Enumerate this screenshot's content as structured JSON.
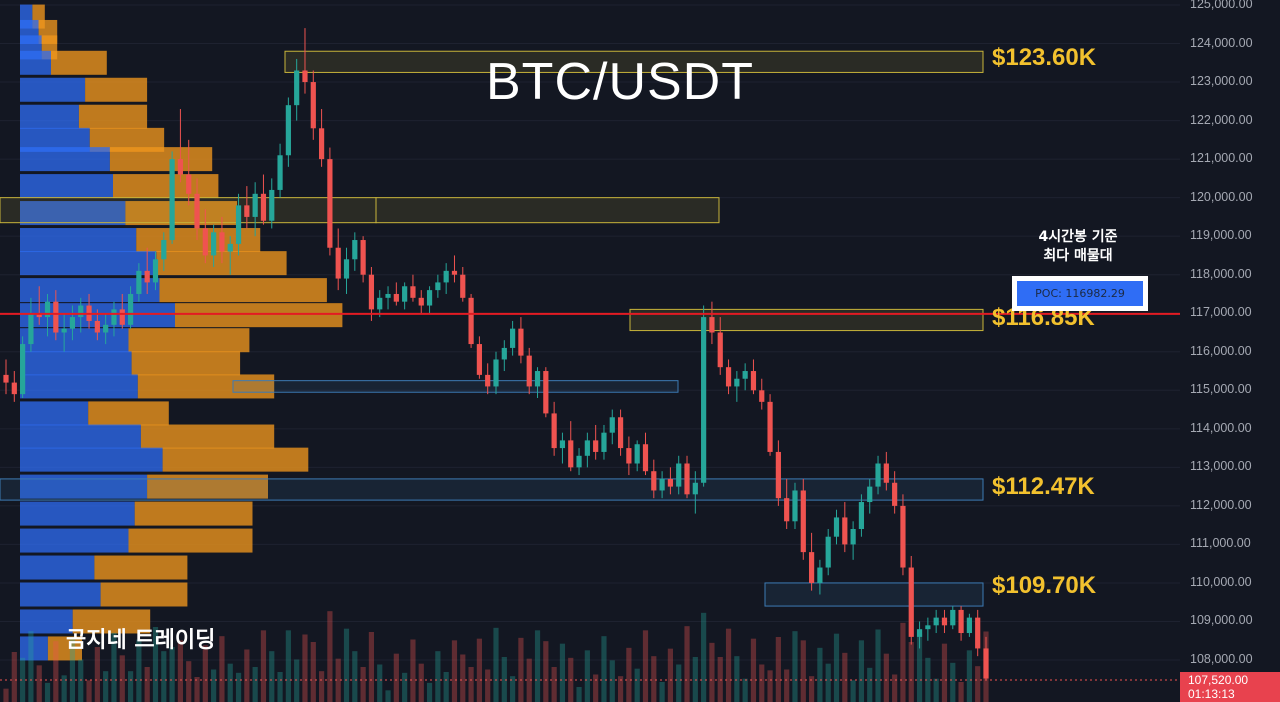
{
  "title": "BTC/USDT",
  "brand": "곰지네 트레이딩",
  "poc": {
    "note_line1": "4시간봉 기준",
    "note_line2": "최다 매물대",
    "label": "POC: 116982.29"
  },
  "levels": [
    {
      "label": "$123.60K",
      "price": 123600
    },
    {
      "label": "$116.85K",
      "price": 116850
    },
    {
      "label": "$112.47K",
      "price": 112470
    },
    {
      "label": "$109.70K",
      "price": 109700
    }
  ],
  "current": {
    "price": "107,520.00",
    "countdown": "01:13:13"
  },
  "y_axis": {
    "min": 107000,
    "max": 125000,
    "ticks": [
      "125,000.00",
      "124,000.00",
      "123,000.00",
      "122,000.00",
      "121,000.00",
      "120,000.00",
      "119,000.00",
      "118,000.00",
      "117,000.00",
      "116,000.00",
      "115,000.00",
      "114,000.00",
      "113,000.00",
      "112,000.00",
      "111,000.00",
      "110,000.00",
      "109,000.00",
      "108,000.00"
    ],
    "tick_values": [
      125000,
      124000,
      123000,
      122000,
      121000,
      120000,
      119000,
      118000,
      117000,
      116000,
      115000,
      114000,
      113000,
      112000,
      111000,
      110000,
      109000,
      108000
    ]
  },
  "colors": {
    "background": "#131722",
    "up": "#26a69a",
    "down": "#ef5350",
    "profile_buy": "#2f6df5",
    "profile_sell": "#f0961e",
    "poc_line": "#e31b23",
    "level_text": "#f2c12e",
    "zone_yellow": "#c8b43a",
    "zone_blue": "#3d7bb5"
  },
  "chart_data": {
    "type": "candlestick",
    "title": "BTC/USDT",
    "ylim": [
      107000,
      125000
    ],
    "candles": [
      [
        115400,
        115800,
        114900,
        115200
      ],
      [
        115200,
        115500,
        114700,
        114900
      ],
      [
        114900,
        116400,
        114800,
        116200
      ],
      [
        116200,
        117400,
        116000,
        117000
      ],
      [
        117000,
        117700,
        116700,
        116900
      ],
      [
        116900,
        117500,
        116400,
        117300
      ],
      [
        117300,
        117600,
        116300,
        116500
      ],
      [
        116500,
        117000,
        116000,
        116600
      ],
      [
        116600,
        117200,
        116300,
        116900
      ],
      [
        116900,
        117400,
        116500,
        117200
      ],
      [
        117200,
        117500,
        116600,
        116800
      ],
      [
        116800,
        117100,
        116300,
        116500
      ],
      [
        116500,
        117000,
        116200,
        116700
      ],
      [
        116700,
        117300,
        116400,
        117100
      ],
      [
        117100,
        117500,
        116600,
        116700
      ],
      [
        116700,
        117700,
        116600,
        117500
      ],
      [
        117500,
        118300,
        117300,
        118100
      ],
      [
        118100,
        118700,
        117500,
        117800
      ],
      [
        117800,
        118600,
        117600,
        118400
      ],
      [
        118400,
        119100,
        118100,
        118900
      ],
      [
        118900,
        121200,
        118800,
        121000
      ],
      [
        121000,
        122300,
        120400,
        120600
      ],
      [
        120600,
        121500,
        119800,
        120100
      ],
      [
        120100,
        120500,
        118900,
        119200
      ],
      [
        119200,
        119700,
        118300,
        118500
      ],
      [
        118500,
        119300,
        118200,
        119100
      ],
      [
        119100,
        119500,
        118300,
        118600
      ],
      [
        118600,
        119000,
        118000,
        118800
      ],
      [
        118800,
        120100,
        118500,
        119800
      ],
      [
        119800,
        120300,
        119200,
        119500
      ],
      [
        119500,
        120400,
        119000,
        120100
      ],
      [
        120100,
        120600,
        119300,
        119400
      ],
      [
        119400,
        120500,
        119200,
        120200
      ],
      [
        120200,
        121400,
        120000,
        121100
      ],
      [
        121100,
        122600,
        120800,
        122400
      ],
      [
        122400,
        123600,
        122000,
        123300
      ],
      [
        123300,
        124400,
        122700,
        123000
      ],
      [
        123000,
        123300,
        121500,
        121800
      ],
      [
        121800,
        122300,
        120800,
        121000
      ],
      [
        121000,
        121300,
        118500,
        118700
      ],
      [
        118700,
        119200,
        117600,
        117900
      ],
      [
        117900,
        118700,
        117500,
        118400
      ],
      [
        118400,
        119100,
        118100,
        118900
      ],
      [
        118900,
        119000,
        117800,
        118000
      ],
      [
        118000,
        118200,
        116800,
        117100
      ],
      [
        117100,
        117600,
        116900,
        117400
      ],
      [
        117400,
        117700,
        117100,
        117500
      ],
      [
        117500,
        117800,
        117200,
        117300
      ],
      [
        117300,
        117800,
        117100,
        117700
      ],
      [
        117700,
        118000,
        117300,
        117400
      ],
      [
        117400,
        117600,
        117000,
        117200
      ],
      [
        117200,
        117700,
        117000,
        117600
      ],
      [
        117600,
        118000,
        117400,
        117800
      ],
      [
        117800,
        118300,
        117500,
        118100
      ],
      [
        118100,
        118500,
        117800,
        118000
      ],
      [
        118000,
        118200,
        117300,
        117400
      ],
      [
        117400,
        117500,
        116100,
        116200
      ],
      [
        116200,
        116400,
        115300,
        115400
      ],
      [
        115400,
        115700,
        114900,
        115100
      ],
      [
        115100,
        116000,
        114900,
        115800
      ],
      [
        115800,
        116300,
        115500,
        116100
      ],
      [
        116100,
        116800,
        115900,
        116600
      ],
      [
        116600,
        116900,
        115700,
        115900
      ],
      [
        115900,
        116100,
        114900,
        115100
      ],
      [
        115100,
        115600,
        114800,
        115500
      ],
      [
        115500,
        115600,
        114300,
        114400
      ],
      [
        114400,
        114700,
        113300,
        113500
      ],
      [
        113500,
        113900,
        113100,
        113700
      ],
      [
        113700,
        114200,
        112900,
        113000
      ],
      [
        113000,
        113500,
        112800,
        113300
      ],
      [
        113300,
        113900,
        113000,
        113700
      ],
      [
        113700,
        114100,
        113200,
        113400
      ],
      [
        113400,
        114100,
        113200,
        113900
      ],
      [
        113900,
        114500,
        113600,
        114300
      ],
      [
        114300,
        114500,
        113300,
        113500
      ],
      [
        113500,
        113800,
        112800,
        113100
      ],
      [
        113100,
        113700,
        112900,
        113600
      ],
      [
        113600,
        113900,
        112800,
        112900
      ],
      [
        112900,
        113200,
        112200,
        112400
      ],
      [
        112400,
        112900,
        112200,
        112700
      ],
      [
        112700,
        113000,
        112300,
        112500
      ],
      [
        112500,
        113300,
        112300,
        113100
      ],
      [
        113100,
        113300,
        112200,
        112300
      ],
      [
        112300,
        112900,
        111800,
        112600
      ],
      [
        112600,
        117200,
        112500,
        116900
      ],
      [
        116900,
        117300,
        116200,
        116500
      ],
      [
        116500,
        116900,
        115400,
        115600
      ],
      [
        115600,
        115800,
        114900,
        115100
      ],
      [
        115100,
        115500,
        114700,
        115300
      ],
      [
        115300,
        115700,
        115000,
        115500
      ],
      [
        115500,
        115800,
        114900,
        115000
      ],
      [
        115000,
        115300,
        114500,
        114700
      ],
      [
        114700,
        114900,
        113300,
        113400
      ],
      [
        113400,
        113700,
        112000,
        112200
      ],
      [
        112200,
        112700,
        111400,
        111600
      ],
      [
        111600,
        112600,
        111400,
        112400
      ],
      [
        112400,
        112700,
        110600,
        110800
      ],
      [
        110800,
        111300,
        109800,
        110000
      ],
      [
        110000,
        110600,
        109700,
        110400
      ],
      [
        110400,
        111400,
        110200,
        111200
      ],
      [
        111200,
        111900,
        111000,
        111700
      ],
      [
        111700,
        112100,
        110800,
        111000
      ],
      [
        111000,
        111600,
        110600,
        111400
      ],
      [
        111400,
        112300,
        111200,
        112100
      ],
      [
        112100,
        112700,
        111800,
        112500
      ],
      [
        112500,
        113300,
        112300,
        113100
      ],
      [
        113100,
        113400,
        112400,
        112600
      ],
      [
        112600,
        112900,
        111800,
        112000
      ],
      [
        112000,
        112300,
        110200,
        110400
      ],
      [
        110400,
        110700,
        108400,
        108600
      ],
      [
        108600,
        109000,
        108300,
        108800
      ],
      [
        108800,
        109100,
        108500,
        108900
      ],
      [
        108900,
        109300,
        108700,
        109100
      ],
      [
        109100,
        109300,
        108700,
        108900
      ],
      [
        108900,
        109400,
        108800,
        109300
      ],
      [
        109300,
        109400,
        108500,
        108700
      ],
      [
        108700,
        109200,
        108600,
        109100
      ],
      [
        109100,
        109300,
        108100,
        108300
      ],
      [
        108300,
        108600,
        107500,
        107520
      ]
    ],
    "volume_profile_levels": [
      124700,
      124300,
      123900,
      123500,
      122800,
      122100,
      121500,
      121000,
      120300,
      119600,
      118900,
      118300,
      117600,
      116950,
      116300,
      115700,
      115100,
      114400,
      113800,
      113200,
      112500,
      111800,
      111100,
      110400,
      109700,
      109000,
      108300
    ],
    "volume_profile_buy": [
      8,
      12,
      14,
      20,
      42,
      38,
      45,
      58,
      60,
      68,
      75,
      88,
      90,
      100,
      70,
      72,
      76,
      44,
      78,
      92,
      82,
      74,
      70,
      48,
      52,
      34,
      18
    ],
    "volume_profile_sell": [
      8,
      12,
      10,
      36,
      40,
      44,
      48,
      66,
      68,
      72,
      80,
      84,
      108,
      108,
      78,
      70,
      88,
      52,
      86,
      94,
      78,
      76,
      80,
      60,
      56,
      50,
      22
    ],
    "poc": 116982.29,
    "levels": [
      123600,
      116850,
      112470,
      109700
    ],
    "annotations": [
      "$123.60K",
      "$116.85K",
      "$112.47K",
      "$109.70K",
      "POC: 116982.29",
      "4시간봉 기준",
      "최다 매물대"
    ]
  }
}
